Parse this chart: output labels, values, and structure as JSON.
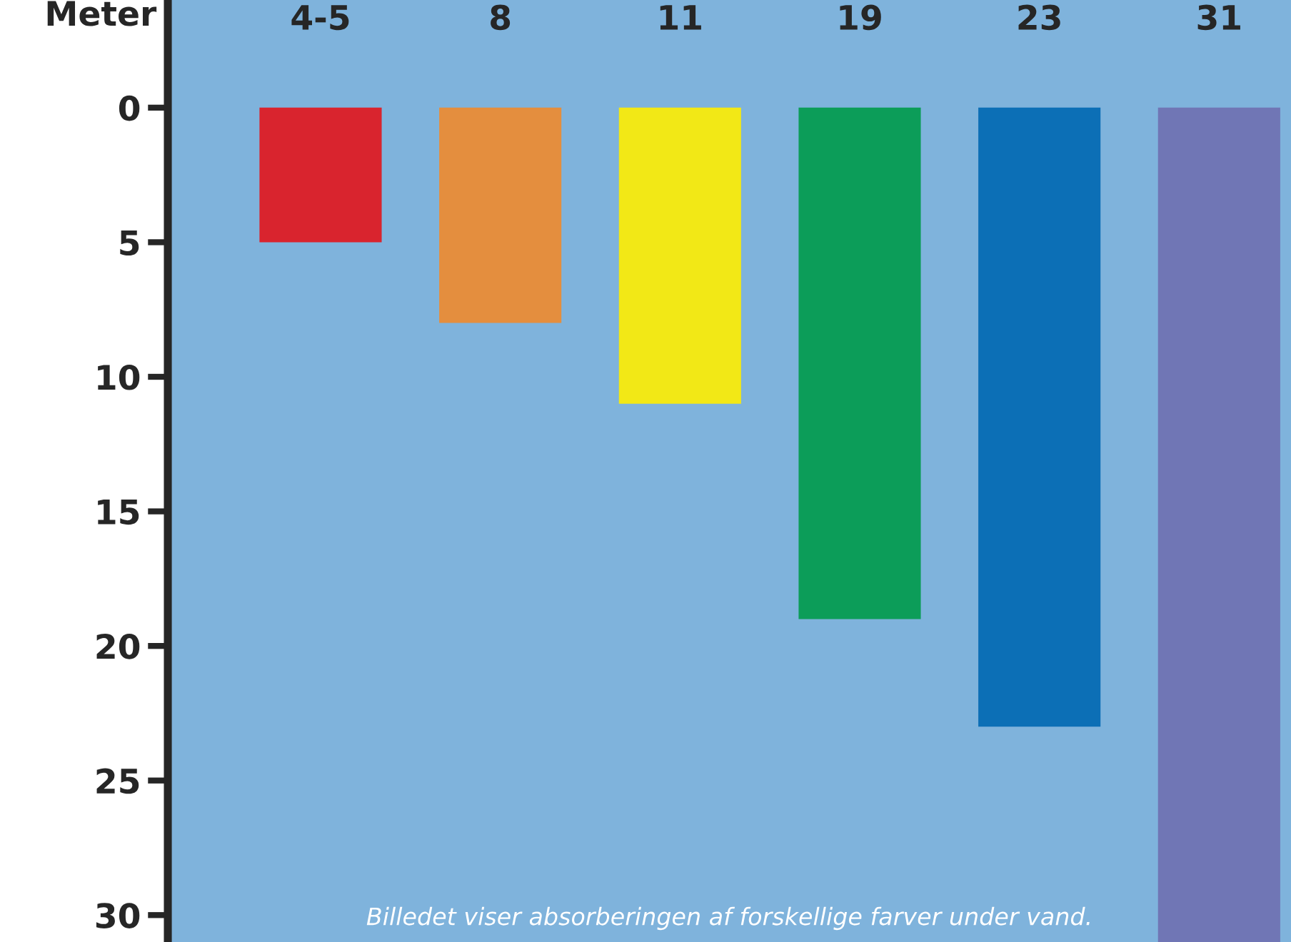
{
  "chart_data": {
    "type": "bar",
    "ylabel": "Meter",
    "categories": [
      "4-5",
      "8",
      "11",
      "19",
      "23",
      "31"
    ],
    "values": [
      5,
      8,
      11,
      19,
      23,
      31
    ],
    "colors": [
      "#e3141b",
      "#f08a2c",
      "#ffed00",
      "#009a4a",
      "#0067b1",
      "#6f6fb0"
    ],
    "ylim": [
      31,
      -4
    ],
    "yticks": [
      0,
      5,
      10,
      15,
      20,
      25,
      30
    ],
    "grid": false,
    "legend": false,
    "annotations": [
      "Billedet viser absorberingen af forskellige farver under vand."
    ]
  }
}
